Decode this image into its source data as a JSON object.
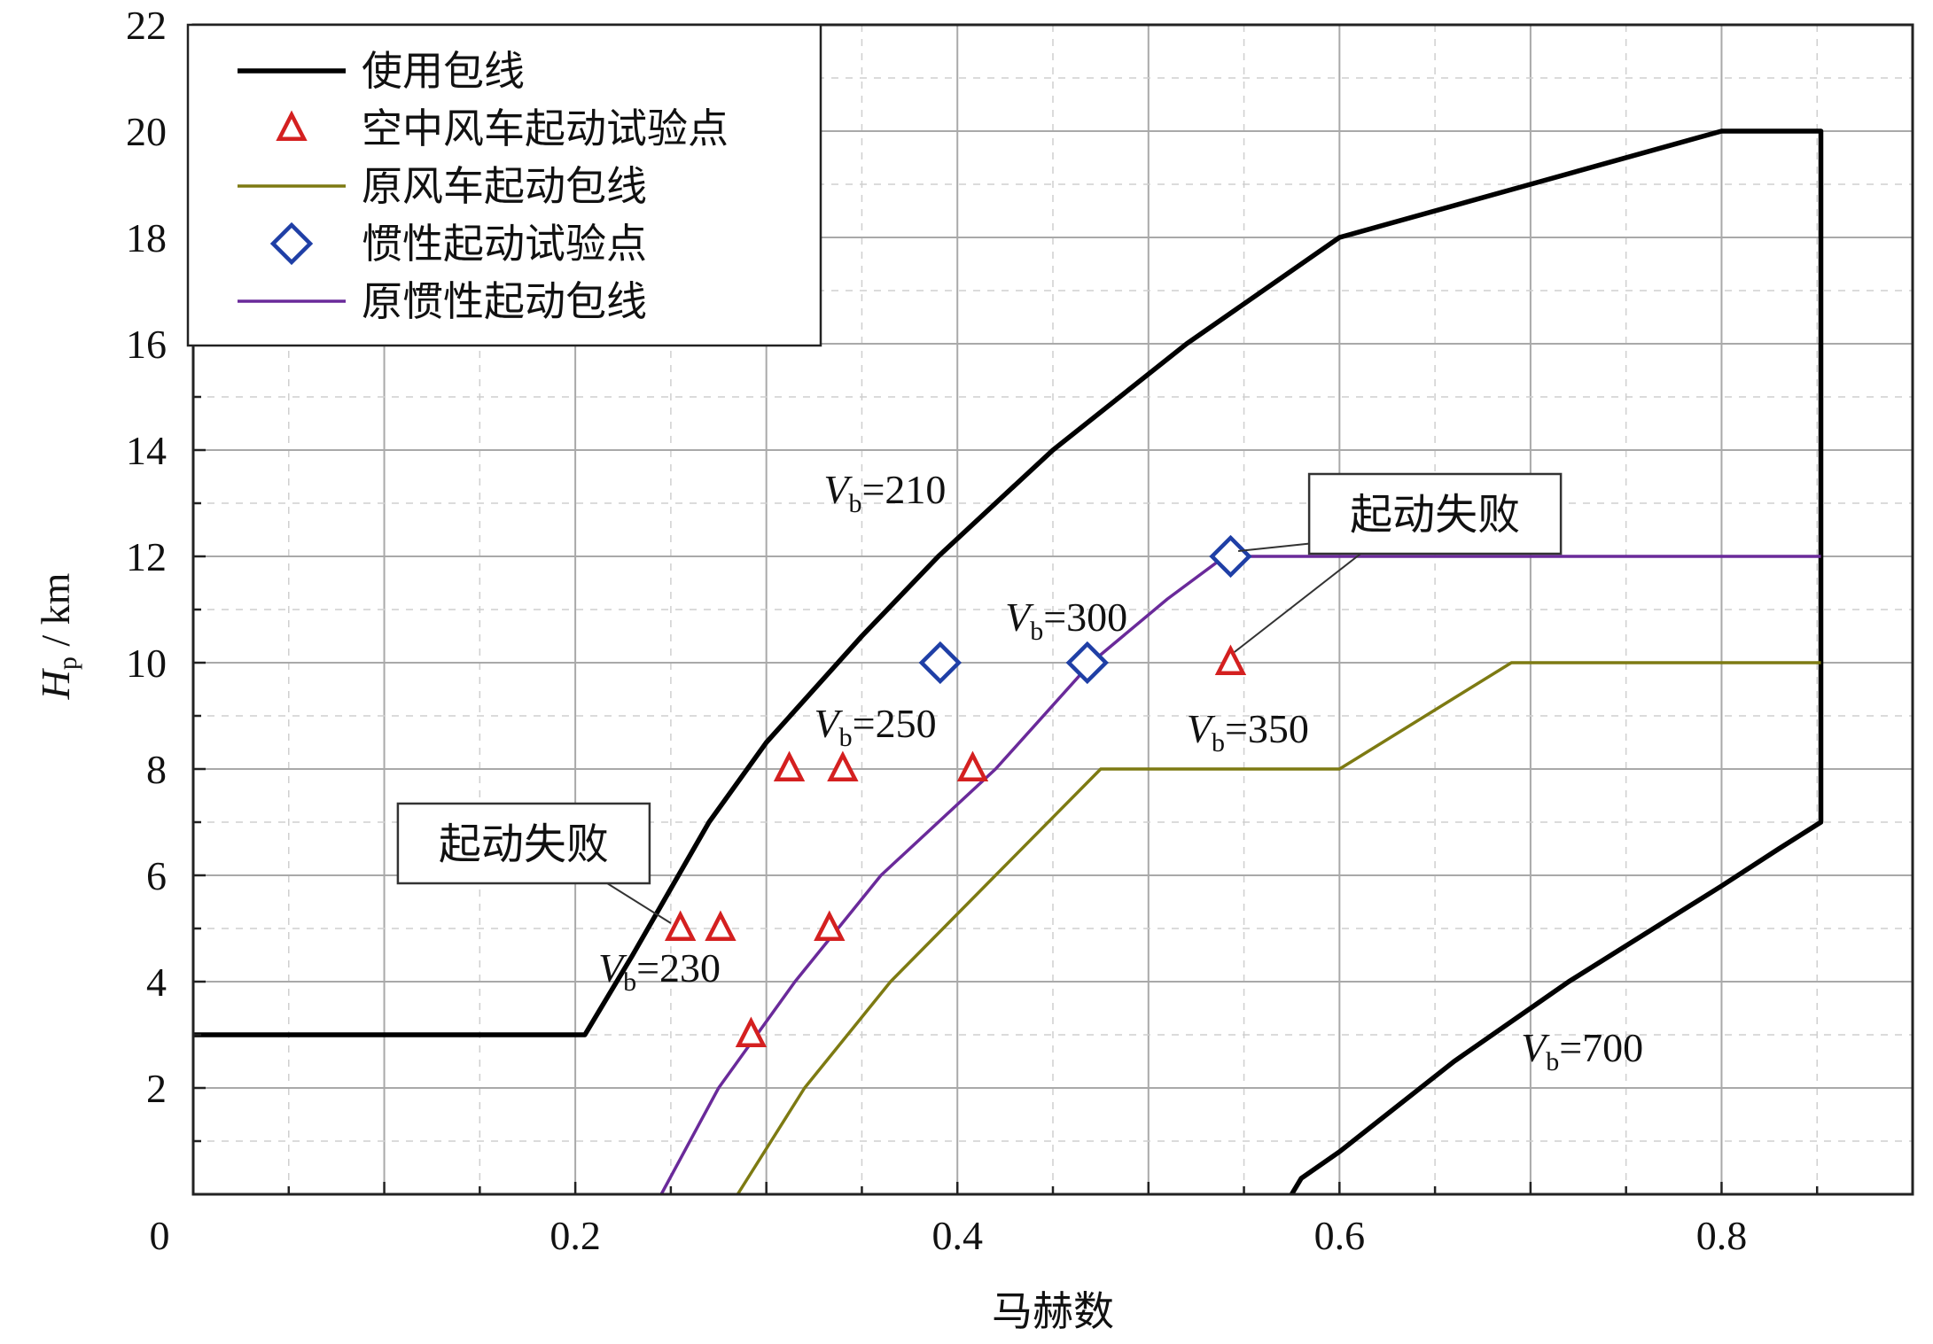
{
  "chart_data": {
    "type": "line",
    "title": "",
    "xlabel": "马赫数",
    "ylabel_main": "H",
    "ylabel_sub": "p",
    "ylabel_unit": " / km",
    "xlim": [
      0,
      0.9
    ],
    "ylim": [
      0,
      22
    ],
    "x_ticks": [
      0,
      0.2,
      0.4,
      0.6,
      0.8
    ],
    "x_tick_labels": [
      "0",
      "0.2",
      "0.4",
      "0.6",
      "0.8"
    ],
    "y_ticks": [
      2,
      4,
      6,
      8,
      10,
      12,
      14,
      16,
      18,
      20,
      22
    ],
    "y_tick_labels": [
      "2",
      "4",
      "6",
      "8",
      "10",
      "12",
      "14",
      "16",
      "18",
      "20",
      "22"
    ],
    "grid": true,
    "legend": {
      "placement": "top-left",
      "entries": [
        {
          "key": "envelope",
          "label": "使用包线",
          "marker": "line",
          "color": "#000000"
        },
        {
          "key": "windmill_points",
          "label": "空中风车起动试验点",
          "marker": "triangle",
          "color": "#d42020"
        },
        {
          "key": "windmill_envelope",
          "label": "原风车起动包线",
          "marker": "line",
          "color": "#7d7a12"
        },
        {
          "key": "inertia_points",
          "label": "惯性起动试验点",
          "marker": "diamond",
          "color": "#1f3fa6"
        },
        {
          "key": "inertia_envelope",
          "label": "原惯性起动包线",
          "marker": "line",
          "color": "#6a2a9a"
        }
      ]
    },
    "series": [
      {
        "name": "使用包线",
        "kind": "line",
        "color": "#000000",
        "points": [
          [
            0,
            3
          ],
          [
            0.205,
            3
          ],
          [
            0.23,
            4.5
          ],
          [
            0.27,
            7
          ],
          [
            0.3,
            8.5
          ],
          [
            0.35,
            10.5
          ],
          [
            0.39,
            12
          ],
          [
            0.42,
            13
          ],
          [
            0.45,
            14
          ],
          [
            0.52,
            16
          ],
          [
            0.58,
            17.5
          ],
          [
            0.6,
            18
          ],
          [
            0.7,
            19
          ],
          [
            0.8,
            20
          ],
          [
            0.852,
            20
          ],
          [
            0.852,
            7
          ],
          [
            0.83,
            6.5
          ],
          [
            0.8,
            5.8
          ],
          [
            0.72,
            4
          ],
          [
            0.66,
            2.5
          ],
          [
            0.6,
            0.8
          ],
          [
            0.58,
            0.3
          ],
          [
            0.575,
            0
          ]
        ]
      },
      {
        "name": "原风车起动包线",
        "kind": "line",
        "color": "#7d7a12",
        "points": [
          [
            0.285,
            0
          ],
          [
            0.32,
            2
          ],
          [
            0.365,
            4
          ],
          [
            0.42,
            6
          ],
          [
            0.475,
            8
          ],
          [
            0.6,
            8
          ],
          [
            0.69,
            10
          ],
          [
            0.852,
            10
          ]
        ]
      },
      {
        "name": "原惯性起动包线",
        "kind": "line",
        "color": "#6a2a9a",
        "points": [
          [
            0.245,
            0
          ],
          [
            0.275,
            2
          ],
          [
            0.315,
            4
          ],
          [
            0.36,
            6
          ],
          [
            0.42,
            8
          ],
          [
            0.47,
            10
          ],
          [
            0.51,
            11.2
          ],
          [
            0.54,
            12
          ],
          [
            0.852,
            12
          ]
        ]
      },
      {
        "name": "空中风车起动试验点",
        "kind": "scatter",
        "marker": "triangle",
        "color": "#d42020",
        "points": [
          [
            0.255,
            5
          ],
          [
            0.276,
            5
          ],
          [
            0.292,
            3
          ],
          [
            0.312,
            8
          ],
          [
            0.34,
            8
          ],
          [
            0.333,
            5
          ],
          [
            0.408,
            8
          ],
          [
            0.543,
            10
          ]
        ]
      },
      {
        "name": "惯性起动试验点",
        "kind": "scatter",
        "marker": "diamond",
        "color": "#1f3fa6",
        "points": [
          [
            0.391,
            10
          ],
          [
            0.468,
            10
          ],
          [
            0.543,
            12
          ]
        ]
      }
    ],
    "annotations": [
      {
        "key": "vb210",
        "prefix": "V",
        "sub": "b",
        "text": "=210",
        "x": 0.33,
        "y": 13.0
      },
      {
        "key": "vb250",
        "prefix": "V",
        "sub": "b",
        "text": "=250",
        "x": 0.325,
        "y": 8.6
      },
      {
        "key": "vb300",
        "prefix": "V",
        "sub": "b",
        "text": "=300",
        "x": 0.425,
        "y": 10.6
      },
      {
        "key": "vb230",
        "prefix": "V",
        "sub": "b",
        "text": "=230",
        "x": 0.212,
        "y": 4.0
      },
      {
        "key": "vb350",
        "prefix": "V",
        "sub": "b",
        "text": "=350",
        "x": 0.52,
        "y": 8.5
      },
      {
        "key": "vb700",
        "prefix": "V",
        "sub": "b",
        "text": "=700",
        "x": 0.695,
        "y": 2.5
      }
    ],
    "callouts": [
      {
        "key": "fail_top",
        "text": "起动失败",
        "box_center": [
          0.65,
          12.8
        ],
        "targets": [
          [
            0.547,
            12.1
          ],
          [
            0.545,
            10.2
          ]
        ],
        "leader_from": [
          [
            0.6,
            12.3
          ],
          [
            0.62,
            12.3
          ]
        ]
      },
      {
        "key": "fail_left",
        "text": "起动失败",
        "box_center": [
          0.173,
          6.6
        ],
        "targets": [
          [
            0.25,
            5.1
          ]
        ],
        "leader_from": [
          [
            0.21,
            6.0
          ]
        ]
      }
    ]
  }
}
